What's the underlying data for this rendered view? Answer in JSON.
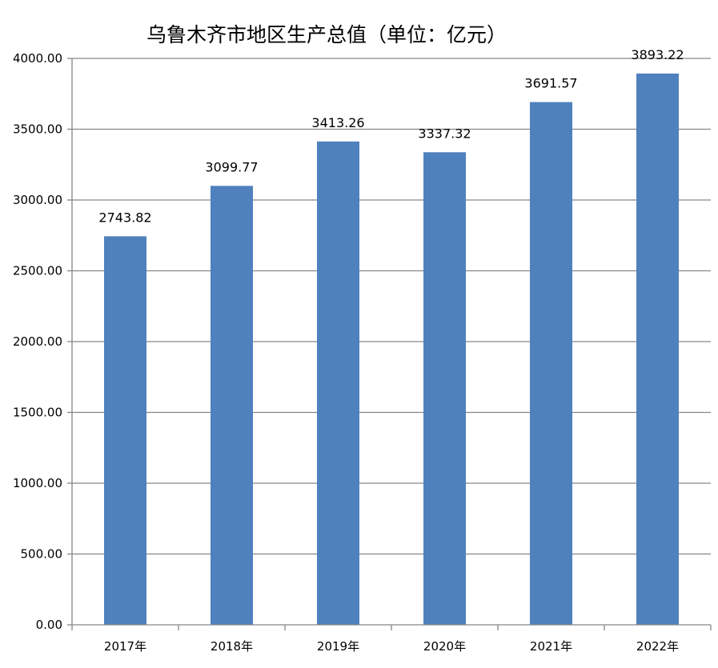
{
  "chart_data": {
    "type": "bar",
    "title": "乌鲁木齐市地区生产总值（单位：亿元）",
    "xlabel": "",
    "ylabel": "",
    "categories": [
      "2017年",
      "2018年",
      "2019年",
      "2020年",
      "2021年",
      "2022年"
    ],
    "series": [
      {
        "values": [
          2743.82,
          3099.77,
          3413.26,
          3337.32,
          3691.57,
          3893.22
        ]
      }
    ],
    "data_labels": [
      "2743.82",
      "3099.77",
      "3413.26",
      "3337.32",
      "3691.57",
      "3893.22"
    ],
    "y_ticks": [
      "0.00",
      "500.00",
      "1000.00",
      "1500.00",
      "2000.00",
      "2500.00",
      "3000.00",
      "3500.00",
      "4000.00"
    ],
    "ylim": [
      0,
      4000
    ],
    "grid": true,
    "legend": "none",
    "bar_color": "#4f81bd",
    "grid_color": "#868686"
  }
}
